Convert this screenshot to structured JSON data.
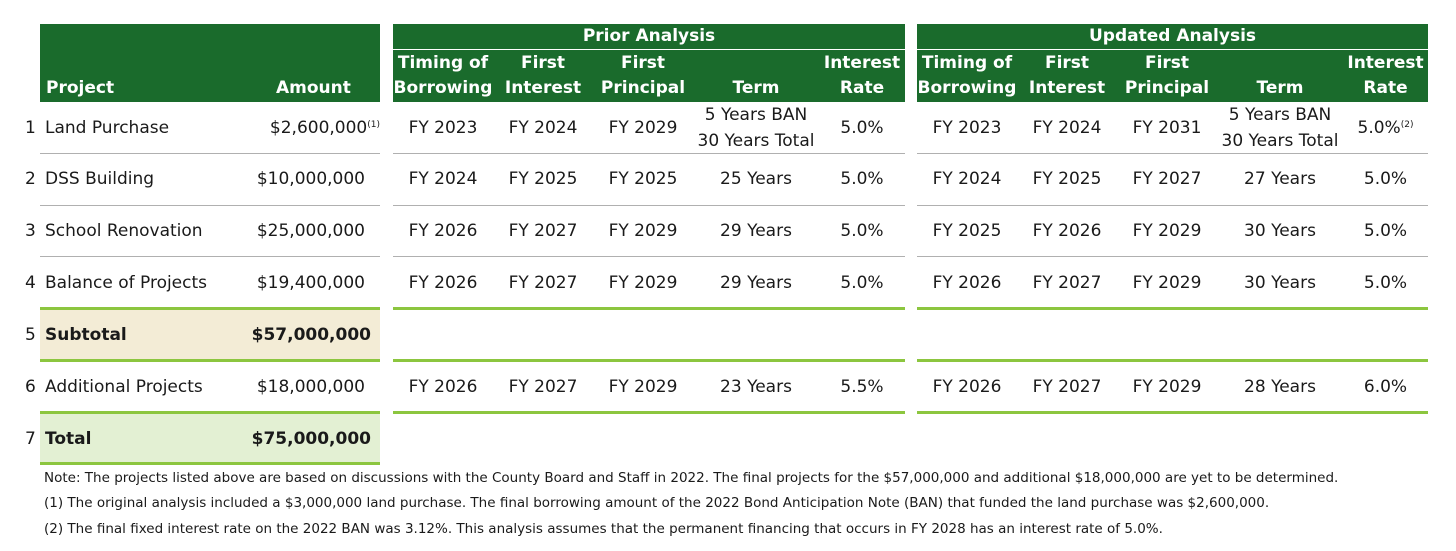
{
  "project_table": {
    "header": {
      "project": "Project",
      "amount": "Amount"
    },
    "rows": [
      {
        "num": "1",
        "project": "Land Purchase",
        "amount": "$2,600,000",
        "amount_note": "(1)"
      },
      {
        "num": "2",
        "project": "DSS Building",
        "amount": "$10,000,000"
      },
      {
        "num": "3",
        "project": "School Renovation",
        "amount": "$25,000,000"
      },
      {
        "num": "4",
        "project": "Balance of Projects",
        "amount": "$19,400,000"
      },
      {
        "num": "5",
        "project": "Subtotal",
        "amount": "$57,000,000"
      },
      {
        "num": "6",
        "project": "Additional Projects",
        "amount": "$18,000,000"
      },
      {
        "num": "7",
        "project": "Total",
        "amount": "$75,000,000"
      }
    ]
  },
  "prior": {
    "title": "Prior Analysis",
    "cols": [
      {
        "l1": "Timing of",
        "l2": "Borrowing"
      },
      {
        "l1": "First",
        "l2": "Interest"
      },
      {
        "l1": "First",
        "l2": "Principal"
      },
      {
        "l1": "",
        "l2": "Term"
      },
      {
        "l1": "Interest",
        "l2": "Rate"
      }
    ],
    "rows": [
      {
        "timing": "FY 2023",
        "interest": "FY 2024",
        "principal": "FY 2029",
        "term1": "5 Years BAN",
        "term2": "30 Years Total",
        "rate": "5.0%"
      },
      {
        "timing": "FY 2024",
        "interest": "FY 2025",
        "principal": "FY 2025",
        "term": "25 Years",
        "rate": "5.0%"
      },
      {
        "timing": "FY 2026",
        "interest": "FY 2027",
        "principal": "FY 2029",
        "term": "29 Years",
        "rate": "5.0%"
      },
      {
        "timing": "FY 2026",
        "interest": "FY 2027",
        "principal": "FY 2029",
        "term": "29 Years",
        "rate": "5.0%"
      },
      {
        "timing": "FY 2026",
        "interest": "FY 2027",
        "principal": "FY 2029",
        "term": "23 Years",
        "rate": "5.5%"
      }
    ]
  },
  "updated": {
    "title": "Updated Analysis",
    "cols": [
      {
        "l1": "Timing of",
        "l2": "Borrowing"
      },
      {
        "l1": "First",
        "l2": "Interest"
      },
      {
        "l1": "First",
        "l2": "Principal"
      },
      {
        "l1": "",
        "l2": "Term"
      },
      {
        "l1": "Interest",
        "l2": "Rate"
      }
    ],
    "rows": [
      {
        "timing": "FY 2023",
        "interest": "FY 2024",
        "principal": "FY 2031",
        "term1": "5 Years BAN",
        "term2": "30 Years Total",
        "rate": "5.0%",
        "rate_note": "(2)"
      },
      {
        "timing": "FY 2024",
        "interest": "FY 2025",
        "principal": "FY 2027",
        "term": "27 Years",
        "rate": "5.0%"
      },
      {
        "timing": "FY 2025",
        "interest": "FY 2026",
        "principal": "FY 2029",
        "term": "30 Years",
        "rate": "5.0%"
      },
      {
        "timing": "FY 2026",
        "interest": "FY 2027",
        "principal": "FY 2029",
        "term": "30 Years",
        "rate": "5.0%"
      },
      {
        "timing": "FY 2026",
        "interest": "FY 2027",
        "principal": "FY 2029",
        "term": "28 Years",
        "rate": "6.0%"
      }
    ]
  },
  "notes": [
    "Note: The projects listed above are based on discussions with the County Board and Staff in 2022. The final projects for the $57,000,000 and additional $18,000,000 are yet to be determined.",
    "(1) The original analysis included a $3,000,000 land purchase. The final borrowing amount of the 2022 Bond Anticipation Note (BAN) that funded the land purchase was $2,600,000.",
    "(2) The final fixed interest rate on the 2022 BAN was 3.12%. This analysis assumes that the permanent financing that occurs in FY 2028 has an interest rate of 5.0%."
  ],
  "colors": {
    "header_green": "#1a6b2c",
    "accent_green": "#8cc63f",
    "subtotal_fill": "#f3ecd6",
    "total_fill": "#e3f0d3"
  }
}
